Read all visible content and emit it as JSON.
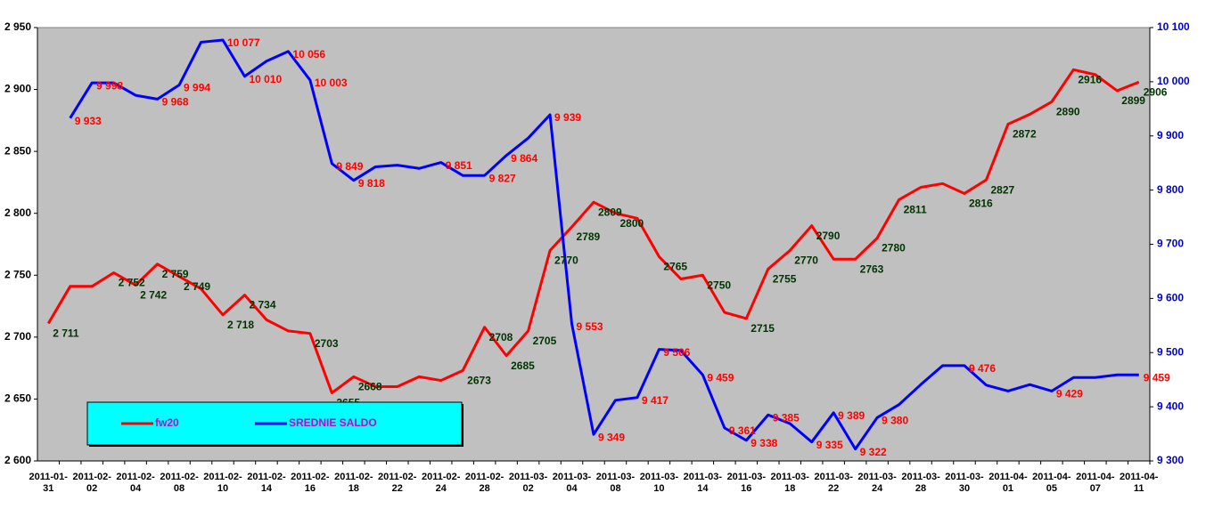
{
  "chart_data": {
    "type": "line",
    "categories": [
      "2011-01-31",
      null,
      "2011-02-02",
      null,
      "2011-02-04",
      null,
      "2011-02-08",
      null,
      "2011-02-10",
      null,
      "2011-02-14",
      null,
      "2011-02-16",
      null,
      "2011-02-18",
      null,
      "2011-02-22",
      null,
      "2011-02-24",
      null,
      "2011-02-28",
      null,
      "2011-03-02",
      null,
      "2011-03-04",
      null,
      "2011-03-08",
      null,
      "2011-03-10",
      null,
      "2011-03-14",
      null,
      "2011-03-16",
      null,
      "2011-03-18",
      null,
      "2011-03-22",
      null,
      "2011-03-24",
      null,
      "2011-03-28",
      null,
      "2011-03-30",
      null,
      "2011-04-01",
      null,
      "2011-04-05",
      null,
      "2011-04-07",
      null,
      "2011-04-11"
    ],
    "series": [
      {
        "name": "fw20",
        "color": "#ff0000",
        "label_color": "#003300",
        "values": [
          2711,
          2741,
          2741,
          2752,
          2742,
          2759,
          2749,
          2739,
          2718,
          2734,
          2714,
          2705,
          2703,
          2655,
          2668,
          2660,
          2660,
          2668,
          2665,
          2673,
          2708,
          2685,
          2705,
          2770,
          2789,
          2809,
          2800,
          2796,
          2765,
          2747,
          2750,
          2720,
          2715,
          2755,
          2770,
          2790,
          2763,
          2763,
          2780,
          2811,
          2821,
          2824,
          2816,
          2827,
          2872,
          2880,
          2890,
          2916,
          2912,
          2899,
          2906
        ],
        "value_labels": [
          "2 711",
          null,
          null,
          "2 752",
          "2 742",
          "2 759",
          "2 749",
          null,
          "2 718",
          "2 734",
          null,
          null,
          "2703",
          "2655",
          "2668",
          null,
          null,
          null,
          null,
          "2673",
          "2708",
          "2685",
          "2705",
          "2770",
          "2789",
          "2809",
          "2800",
          null,
          "2765",
          null,
          "2750",
          null,
          "2715",
          "2755",
          "2770",
          "2790",
          null,
          "2763",
          "2780",
          "2811",
          null,
          null,
          "2816",
          "2827",
          "2872",
          null,
          "2890",
          "2916",
          null,
          "2899",
          "2906"
        ]
      },
      {
        "name": "SREDNIE SALDO",
        "color": "#0000ff",
        "label_color": "#ff0000",
        "axis": "y2",
        "values": [
          null,
          9933,
          9998,
          9998,
          9975,
          9968,
          9994,
          10073,
          10077,
          10010,
          10038,
          10056,
          10003,
          9849,
          9818,
          9843,
          9846,
          9840,
          9851,
          9827,
          9827,
          9864,
          9896,
          9939,
          9553,
          9349,
          9412,
          9417,
          9506,
          9504,
          9459,
          9361,
          9338,
          9385,
          9369,
          9335,
          9389,
          9322,
          9380,
          9404,
          9441,
          9476,
          9476,
          9440,
          9429,
          9441,
          9429,
          9454,
          9454,
          9459,
          9459
        ],
        "value_labels": [
          null,
          "9 933",
          "9 998",
          null,
          null,
          "9 968",
          "9 994",
          null,
          "10 077",
          "10 010",
          null,
          "10 056",
          "10 003",
          "9 849",
          "9 818",
          null,
          null,
          null,
          "9 851",
          null,
          "9 827",
          "9 864",
          null,
          "9 939",
          "9 553",
          "9 349",
          null,
          "9 417",
          "9 506",
          null,
          "9 459",
          "9 361",
          "9 338",
          "9 385",
          null,
          "9 335",
          "9 389",
          "9 322",
          "9 380",
          null,
          null,
          null,
          "9 476",
          null,
          null,
          null,
          "9 429",
          null,
          null,
          null,
          "9 459"
        ]
      }
    ],
    "ylim": [
      2600,
      2950
    ],
    "yticks": [
      {
        "value": 2600,
        "label": "2 600"
      },
      {
        "value": 2650,
        "label": "2 650"
      },
      {
        "value": 2700,
        "label": "2 700"
      },
      {
        "value": 2750,
        "label": "2 750"
      },
      {
        "value": 2800,
        "label": "2 800"
      },
      {
        "value": 2850,
        "label": "2 850"
      },
      {
        "value": 2900,
        "label": "2 900"
      },
      {
        "value": 2950,
        "label": "2 950"
      }
    ],
    "y2lim": [
      9300,
      10100
    ],
    "y2ticks": [
      {
        "value": 9300,
        "label": "9 300"
      },
      {
        "value": 9400,
        "label": "9 400"
      },
      {
        "value": 9500,
        "label": "9 500"
      },
      {
        "value": 9600,
        "label": "9 600"
      },
      {
        "value": 9700,
        "label": "9 700"
      },
      {
        "value": 9800,
        "label": "9 800"
      },
      {
        "value": 9900,
        "label": "9 900"
      },
      {
        "value": 10000,
        "label": "10 000"
      },
      {
        "value": 10100,
        "label": "10 100"
      }
    ],
    "legend": "lower left",
    "grid": false
  }
}
